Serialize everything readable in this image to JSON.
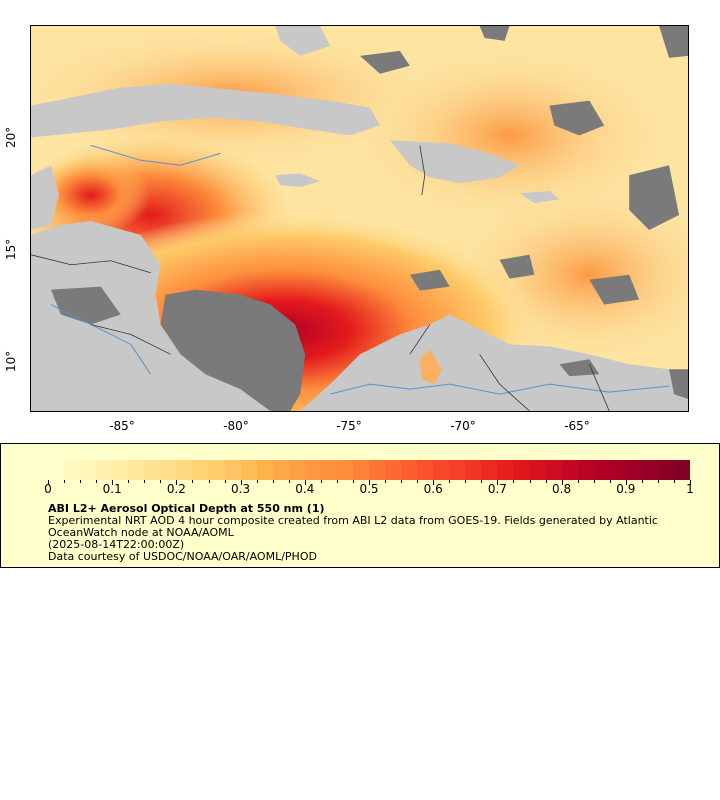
{
  "map": {
    "x_ticks": [
      "-85°",
      "-80°",
      "-75°",
      "-70°",
      "-65°"
    ],
    "y_ticks": [
      "20°",
      "15°",
      "10°"
    ],
    "lon_range": [
      -89,
      -60
    ],
    "lat_range": [
      8,
      25.5
    ],
    "land_color": "#c8c8c8",
    "nodata_color": "#7a7a7a",
    "water_lines_color": "#5b8fd0"
  },
  "legend": {
    "colorbar_labels": [
      "0",
      "0.1",
      "0.2",
      "0.3",
      "0.4",
      "0.5",
      "0.6",
      "0.7",
      "0.8",
      "0.9",
      "1"
    ],
    "colors": [
      "#ffffcc",
      "#fff3b3",
      "#ffe89a",
      "#fed980",
      "#fecb68",
      "#feb24c",
      "#fd9a42",
      "#fd8d3c",
      "#fc6b33",
      "#fc4e2a",
      "#f03523",
      "#e31a1c",
      "#cc0c22",
      "#b10026",
      "#9e0026",
      "#800026"
    ],
    "title": "ABI L2+ Aerosol Optical Depth at 550 nm (1)",
    "description": "Experimental NRT AOD 4 hour composite created from ABI L2 data from GOES-19. Fields generated by Atlantic OceanWatch node at NOAA/AOML",
    "timestamp": "(2025-08-14T22:00:00Z)",
    "credit": "Data courtesy of USDOC/NOAA/OAR/AOML/PHOD"
  }
}
